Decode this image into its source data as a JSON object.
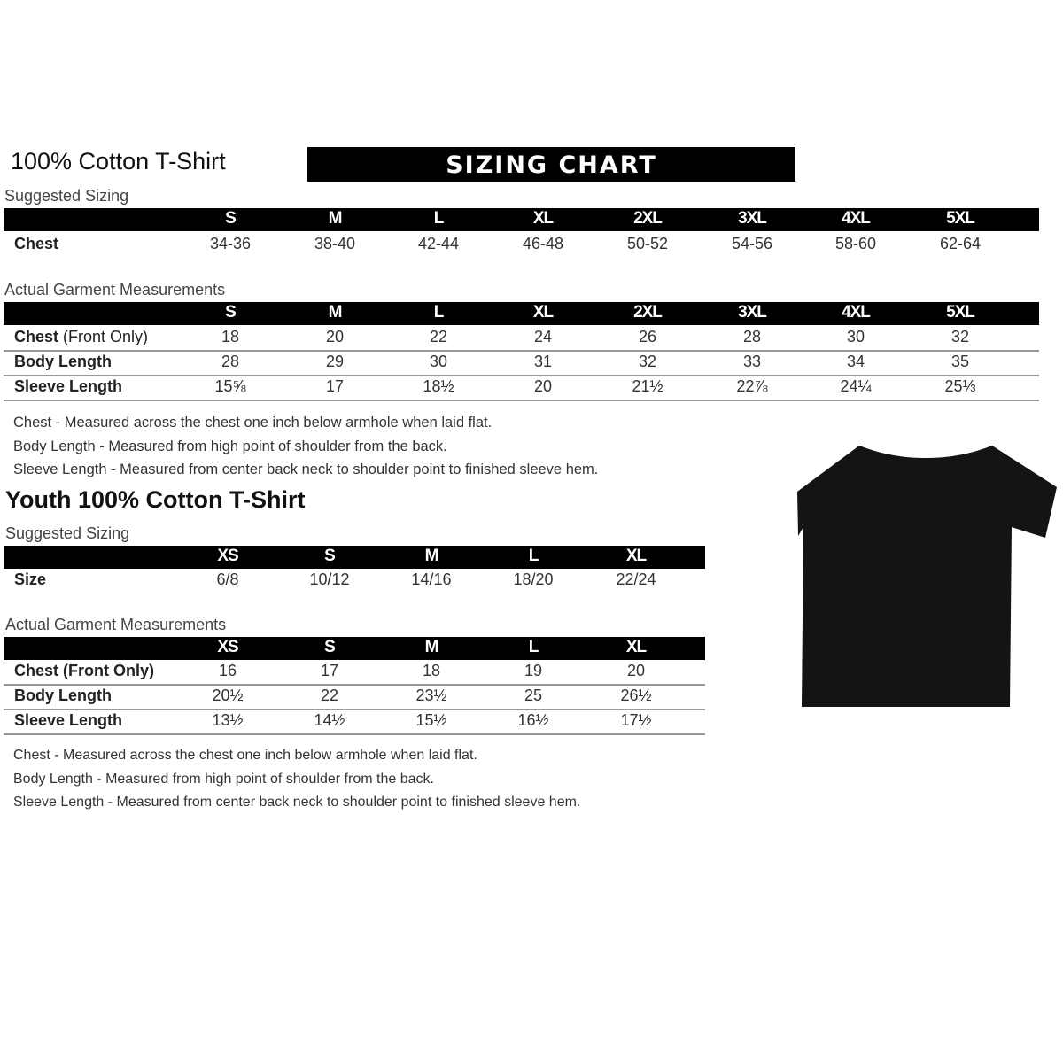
{
  "banner": "SIZING CHART",
  "adult": {
    "title": "100% Cotton T-Shirt",
    "suggested_label": "Suggested Sizing",
    "sizes": [
      "S",
      "M",
      "L",
      "XL",
      "2XL",
      "3XL",
      "4XL",
      "5XL"
    ],
    "suggested_rows": [
      {
        "label": "Chest",
        "values": [
          "34-36",
          "38-40",
          "42-44",
          "46-48",
          "50-52",
          "54-56",
          "58-60",
          "62-64"
        ]
      }
    ],
    "measure_label": "Actual Garment Measurements",
    "measure_rows": [
      {
        "label": "Chest",
        "label_note": "(Front Only)",
        "values": [
          "18",
          "20",
          "22",
          "24",
          "26",
          "28",
          "30",
          "32"
        ]
      },
      {
        "label": "Body Length",
        "label_note": "",
        "values": [
          "28",
          "29",
          "30",
          "31",
          "32",
          "33",
          "34",
          "35"
        ]
      },
      {
        "label": "Sleeve Length",
        "label_note": "",
        "values": [
          "15⅝",
          "17",
          "18½",
          "20",
          "21½",
          "22⅞",
          "24¼",
          "25⅓"
        ]
      }
    ],
    "notes": [
      "Chest - Measured across the chest one inch below armhole when laid flat.",
      "Body Length - Measured from high point of shoulder from the back.",
      "Sleeve Length - Measured from center back neck to shoulder point to finished sleeve hem."
    ]
  },
  "youth": {
    "title": "Youth 100% Cotton T-Shirt",
    "suggested_label": "Suggested Sizing",
    "sizes": [
      "XS",
      "S",
      "M",
      "L",
      "XL"
    ],
    "suggested_rows": [
      {
        "label": "Size",
        "values": [
          "6/8",
          "10/12",
          "14/16",
          "18/20",
          "22/24"
        ]
      }
    ],
    "measure_label": "Actual Garment Measurements",
    "measure_rows": [
      {
        "label": "Chest (Front Only)",
        "label_note": "",
        "values": [
          "16",
          "17",
          "18",
          "19",
          "20"
        ]
      },
      {
        "label": "Body Length",
        "label_note": "",
        "values": [
          "20½",
          "22",
          "23½",
          "25",
          "26½"
        ]
      },
      {
        "label": "Sleeve Length",
        "label_note": "",
        "values": [
          "13½",
          "14½",
          "15½",
          "16½",
          "17½"
        ]
      }
    ],
    "notes": [
      "Chest - Measured across the chest one inch below armhole when laid flat.",
      "Body Length - Measured from high point of shoulder from the back.",
      "Sleeve Length - Measured from center back neck to shoulder point to finished sleeve hem."
    ]
  },
  "tshirt_color": "#141414"
}
